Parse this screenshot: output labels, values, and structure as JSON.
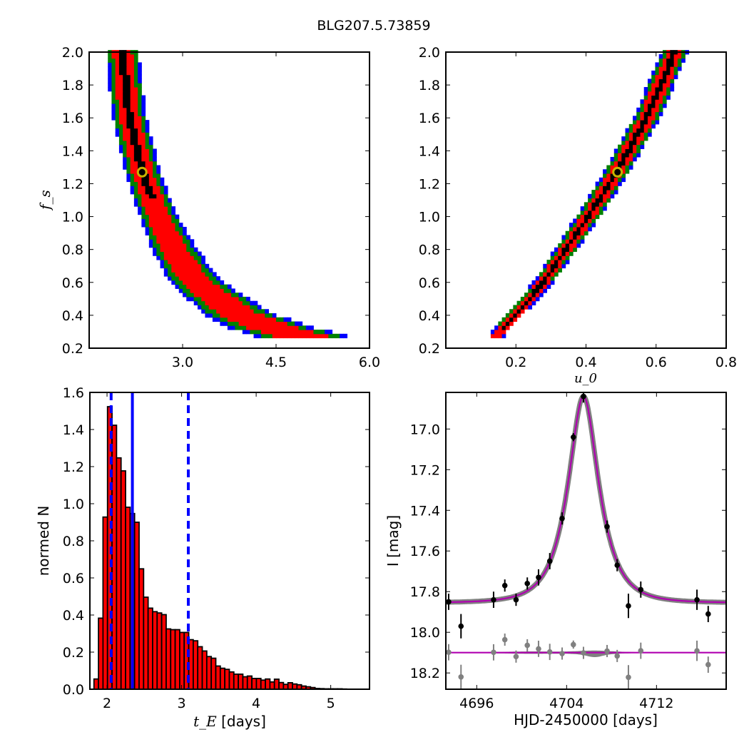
{
  "title": "BLG207.5.73859",
  "colors": {
    "core": "#000000",
    "sigma1": "#ff0000",
    "sigma2": "#008000",
    "sigma3": "#0000ff",
    "marker_ring": "#c8b400",
    "model": "#b000b0",
    "model_band": "#808080",
    "data": "#000000",
    "residual": "#808080",
    "hist_fill": "#ff0000",
    "vline": "#0000ff"
  },
  "chart_data": [
    {
      "id": "tE_fs",
      "type": "heatmap",
      "xlabel": "",
      "ylabel": "f_s",
      "xlim": [
        1.5,
        6.0
      ],
      "ylim": [
        0.2,
        2.0
      ],
      "xticks": [
        "3.0",
        "4.5",
        "6.0"
      ],
      "xtick_values": [
        3.0,
        4.5,
        6.0
      ],
      "yticks": [
        "0.2",
        "0.4",
        "0.6",
        "0.8",
        "1.0",
        "1.2",
        "1.4",
        "1.6",
        "1.8",
        "2.0"
      ],
      "levels": [
        "core",
        "1-sigma",
        "2-sigma",
        "3-sigma"
      ],
      "ridge": {
        "fs": [
          0.27,
          0.3,
          0.4,
          0.6,
          0.8,
          1.0,
          1.27,
          1.6,
          2.0
        ],
        "x": [
          4.9,
          4.5,
          3.88,
          3.19,
          2.85,
          2.6,
          2.35,
          2.14,
          2.03
        ],
        "halfwidth": [
          0.75,
          0.7,
          0.55,
          0.42,
          0.36,
          0.3,
          0.28,
          0.27,
          0.26
        ]
      },
      "core_fs_min": 1.1,
      "best_fit": {
        "x": 2.35,
        "y": 1.27
      }
    },
    {
      "id": "u0_fs",
      "type": "heatmap",
      "xlabel": "u_0",
      "ylabel": "",
      "xlim": [
        0.0,
        0.8
      ],
      "ylim": [
        0.2,
        2.0
      ],
      "xticks": [
        "0.2",
        "0.4",
        "0.6",
        "0.8"
      ],
      "xtick_values": [
        0.2,
        0.4,
        0.6,
        0.8
      ],
      "yticks": [
        "0.2",
        "0.4",
        "0.6",
        "0.8",
        "1.0",
        "1.2",
        "1.4",
        "1.6",
        "1.8",
        "2.0"
      ],
      "ridge": {
        "fs": [
          0.27,
          0.6,
          1.0,
          1.27,
          1.6,
          2.0
        ],
        "x": [
          0.146,
          0.282,
          0.41,
          0.49,
          0.576,
          0.655
        ],
        "halfwidth": [
          0.022,
          0.028,
          0.034,
          0.036,
          0.038,
          0.038
        ]
      },
      "core_fs_min": 0.3,
      "best_fit": {
        "x": 0.49,
        "y": 1.27
      }
    },
    {
      "id": "tE_hist",
      "type": "bar",
      "xlabel_math": "t_E",
      "xlabel_text": "[days]",
      "ylabel": "normed N",
      "xlim": [
        1.77,
        5.52
      ],
      "ylim": [
        0.0,
        1.6
      ],
      "xticks": [
        "2",
        "3",
        "4",
        "5"
      ],
      "xtick_values": [
        2,
        3,
        4,
        5
      ],
      "yticks": [
        "0.0",
        "0.2",
        "0.4",
        "0.6",
        "0.8",
        "1.0",
        "1.2",
        "1.4",
        "1.6"
      ],
      "bin_start": 1.825,
      "bin_width": 0.0605,
      "values": [
        0.055,
        0.383,
        0.928,
        1.523,
        1.423,
        1.247,
        1.177,
        0.981,
        0.947,
        0.9,
        0.649,
        0.496,
        0.437,
        0.418,
        0.411,
        0.402,
        0.325,
        0.321,
        0.321,
        0.306,
        0.306,
        0.267,
        0.261,
        0.229,
        0.206,
        0.176,
        0.167,
        0.125,
        0.113,
        0.107,
        0.093,
        0.081,
        0.081,
        0.067,
        0.071,
        0.058,
        0.058,
        0.049,
        0.055,
        0.039,
        0.054,
        0.036,
        0.026,
        0.035,
        0.028,
        0.024,
        0.017,
        0.013,
        0.009,
        0.004,
        0.003,
        0.002,
        0.002,
        0.002,
        0.002,
        0.001
      ],
      "median": 2.34,
      "interval": [
        2.055,
        3.09
      ]
    },
    {
      "id": "lightcurve",
      "type": "scatter",
      "xlabel": "HJD-2450000 [days]",
      "ylabel": "I [mag]",
      "xlim": [
        4693.25,
        4718.2
      ],
      "ylim": [
        18.28,
        16.82
      ],
      "xticks": [
        "4696",
        "4704",
        "4712"
      ],
      "xtick_values": [
        4696,
        4704,
        4712
      ],
      "yticks": [
        "17.0",
        "17.2",
        "17.4",
        "17.6",
        "17.8",
        "18.0",
        "18.2"
      ],
      "ytick_values": [
        17.0,
        17.2,
        17.4,
        17.6,
        17.8,
        18.0,
        18.2
      ],
      "t": [
        4693.5,
        4694.6,
        4697.5,
        4698.5,
        4699.5,
        4700.5,
        4701.5,
        4702.5,
        4703.6,
        4704.6,
        4705.5,
        4707.6,
        4708.5,
        4709.5,
        4710.6,
        4715.6,
        4716.6
      ],
      "mag": [
        17.85,
        17.97,
        17.84,
        17.77,
        17.84,
        17.76,
        17.73,
        17.65,
        17.44,
        17.04,
        16.84,
        17.48,
        17.67,
        17.87,
        17.79,
        17.84,
        17.91
      ],
      "err": [
        0.04,
        0.06,
        0.04,
        0.03,
        0.03,
        0.03,
        0.04,
        0.04,
        0.03,
        0.02,
        0.03,
        0.03,
        0.03,
        0.06,
        0.04,
        0.05,
        0.04
      ],
      "residual_offset": 18.1,
      "model": {
        "t0": 4705.5,
        "tE": 2.3,
        "u0": 0.49,
        "fs": 1.27,
        "baseline": 17.855
      }
    }
  ]
}
